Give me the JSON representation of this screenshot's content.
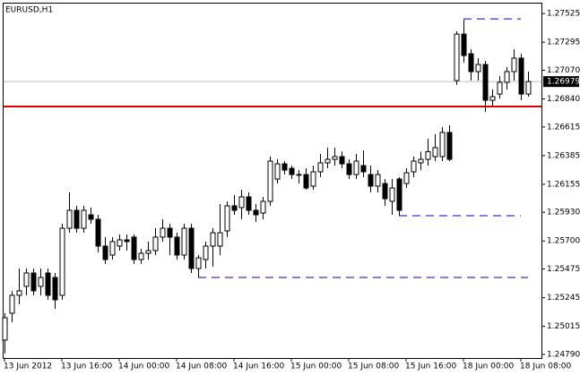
{
  "chart_data": {
    "type": "candlestick",
    "title": "EURUSD,H1",
    "categories": [
      "13 Jun 2012",
      null,
      null,
      null,
      null,
      null,
      null,
      null,
      "13 Jun 16:00",
      null,
      null,
      null,
      null,
      null,
      null,
      null,
      "14 Jun 00:00",
      null,
      null,
      null,
      null,
      null,
      null,
      null,
      "14 Jun 08:00",
      null,
      null,
      null,
      null,
      null,
      null,
      null,
      "14 Jun 16:00",
      null,
      null,
      null,
      null,
      null,
      null,
      null,
      "15 Jun 00:00",
      null,
      null,
      null,
      null,
      null,
      null,
      null,
      "15 Jun 08:00",
      null,
      null,
      null,
      null,
      null,
      null,
      null,
      "15 Jun 16:00",
      null,
      null,
      null,
      null,
      null,
      null,
      null,
      "18 Jun 00:00",
      null,
      null,
      null,
      null,
      null,
      null,
      null,
      "18 Jun 08:00",
      null
    ],
    "open": [
      1.24905,
      1.2512,
      1.25264,
      1.25336,
      1.25443,
      1.25336,
      1.25443,
      1.25407,
      1.25264,
      1.25802,
      1.25946,
      1.25802,
      1.2591,
      1.25874,
      1.25659,
      1.25587,
      1.25659,
      1.25709,
      1.25731,
      1.25551,
      1.25601,
      1.25623,
      1.25731,
      1.25802,
      1.25731,
      1.25587,
      1.25802,
      1.25479,
      1.25551,
      1.25659,
      1.25659,
      1.25781,
      1.25982,
      1.25968,
      1.26054,
      1.25946,
      1.25924,
      1.26018,
      1.26197,
      1.26319,
      1.26283,
      1.26233,
      1.26233,
      1.2614,
      1.26255,
      1.26327,
      1.26355,
      1.26377,
      1.26319,
      1.26233,
      1.26305,
      1.26233,
      1.2614,
      1.26161,
      1.26018,
      1.26197,
      1.26161,
      1.26255,
      1.26327,
      1.26355,
      1.26377,
      1.26377,
      1.26571,
      1.26987,
      1.2736,
      1.27202,
      1.27059,
      1.27116,
      1.26829,
      1.26879,
      1.26973,
      1.27059,
      1.27167,
      1.26879
    ],
    "high": [
      1.2512,
      1.253,
      1.25479,
      1.25479,
      1.25479,
      1.25479,
      1.25479,
      1.25443,
      1.25838,
      1.2609,
      1.25982,
      1.25982,
      1.25968,
      1.2591,
      1.25731,
      1.25731,
      1.25752,
      1.25752,
      1.25752,
      1.25637,
      1.25695,
      1.25802,
      1.25874,
      1.25838,
      1.25766,
      1.25838,
      1.25838,
      1.25587,
      1.25695,
      1.25802,
      1.25996,
      1.26018,
      1.26068,
      1.26111,
      1.2609,
      1.25996,
      1.26054,
      1.26377,
      1.26355,
      1.26341,
      1.26305,
      1.26269,
      1.26283,
      1.26305,
      1.26398,
      1.26449,
      1.26449,
      1.26417,
      1.26355,
      1.26398,
      1.26427,
      1.26305,
      1.26269,
      1.26197,
      1.26197,
      1.26212,
      1.26283,
      1.26377,
      1.26417,
      1.2652,
      1.26556,
      1.26614,
      1.26628,
      1.27382,
      1.27475,
      1.27238,
      1.27167,
      1.27145,
      1.26915,
      1.27023,
      1.27095,
      1.27238,
      1.27202,
      1.27059
    ],
    "low": [
      1.24797,
      1.25048,
      1.25192,
      1.25264,
      1.25264,
      1.25264,
      1.25228,
      1.25156,
      1.25228,
      1.25766,
      1.25766,
      1.25766,
      1.25838,
      1.25608,
      1.25515,
      1.25551,
      1.25623,
      1.25623,
      1.25515,
      1.25515,
      1.25551,
      1.25587,
      1.25695,
      1.25587,
      1.25551,
      1.25551,
      1.25443,
      1.25407,
      1.25479,
      1.25494,
      1.25587,
      1.25731,
      1.2591,
      1.25874,
      1.2591,
      1.25853,
      1.25874,
      1.25982,
      1.26161,
      1.26233,
      1.26197,
      1.26161,
      1.26111,
      1.26111,
      1.26212,
      1.26283,
      1.26305,
      1.26283,
      1.26197,
      1.26197,
      1.26212,
      1.2609,
      1.2609,
      1.25982,
      1.2591,
      1.25903,
      1.26125,
      1.26212,
      1.26269,
      1.26305,
      1.26341,
      1.26341,
      1.26341,
      1.26952,
      1.27131,
      1.26987,
      1.26987,
      1.26736,
      1.26786,
      1.26843,
      1.26915,
      1.26987,
      1.26829,
      1.26858
    ],
    "close": [
      1.25084,
      1.25264,
      1.253,
      1.25443,
      1.253,
      1.25407,
      1.25264,
      1.25228,
      1.25802,
      1.25946,
      1.25802,
      1.25946,
      1.25874,
      1.25659,
      1.25551,
      1.25695,
      1.25709,
      1.25695,
      1.25551,
      1.25601,
      1.25623,
      1.25731,
      1.25802,
      1.25731,
      1.25587,
      1.25802,
      1.25479,
      1.25565,
      1.25659,
      1.25766,
      1.25766,
      1.25982,
      1.25946,
      1.26054,
      1.25946,
      1.2591,
      1.26018,
      1.26341,
      1.26319,
      1.26269,
      1.26233,
      1.26233,
      1.26125,
      1.26255,
      1.26327,
      1.26355,
      1.26377,
      1.26319,
      1.26233,
      1.26341,
      1.26255,
      1.2614,
      1.26233,
      1.26039,
      1.26125,
      1.25946,
      1.26247,
      1.26341,
      1.26355,
      1.26417,
      1.26449,
      1.26571,
      1.26355,
      1.2736,
      1.27188,
      1.27059,
      1.27116,
      1.26829,
      1.26858,
      1.26973,
      1.27059,
      1.27167,
      1.26879,
      1.26979
    ],
    "up_color": "#ffffff",
    "down_color": "#000000",
    "ylim": [
      1.24761,
      1.27612
    ],
    "yticks": [
      1.27525,
      1.27295,
      {
        "value": 1.2707,
        "label": "1.27070"
      },
      {
        "value": 1.2684,
        "label": "1.26840"
      },
      1.26615,
      1.26385,
      1.26155,
      {
        "value": 1.2593,
        "label": "1.25930"
      },
      {
        "value": 1.257,
        "label": "1.25700"
      },
      1.25475,
      1.25245,
      1.25015,
      {
        "value": 1.2479,
        "label": "1.24790"
      }
    ],
    "last_price": 1.26979,
    "last_price_color": "#c0c0c0",
    "levels": [
      {
        "value": 1.26779,
        "color": "#e00000",
        "style": "solid"
      },
      {
        "value": 1.27482,
        "color": "#0000c8",
        "style": "dashed",
        "x": [
          64,
          72
        ]
      },
      {
        "value": 1.25903,
        "color": "#0000c8",
        "style": "dashed",
        "x": [
          55,
          72
        ]
      },
      {
        "value": 1.25407,
        "color": "#0000c8",
        "style": "dashed",
        "x": [
          27,
          73
        ]
      }
    ]
  }
}
